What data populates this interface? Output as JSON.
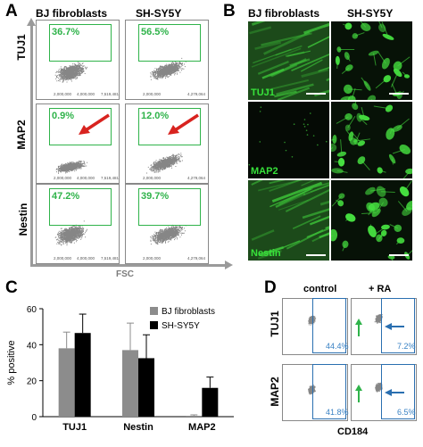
{
  "panels": {
    "A": {
      "letter": "A",
      "columns": [
        "BJ fibroblasts",
        "SH-SY5Y"
      ],
      "rows": [
        "TUJ1",
        "MAP2",
        "Nestin"
      ],
      "percentages": [
        [
          "36.7%",
          "56.5%"
        ],
        [
          "0.9%",
          "12.0%"
        ],
        [
          "47.2%",
          "39.7%"
        ]
      ],
      "x_axis_label": "FSC",
      "ticks": {
        "left": [
          "2,000,000",
          "4,000,000",
          "7,519,481"
        ],
        "right": [
          "2,000,000",
          "4,279,064"
        ]
      }
    },
    "B": {
      "letter": "B",
      "columns": [
        "BJ fibroblasts",
        "SH-SY5Y"
      ],
      "rows": [
        "TUJ1",
        "MAP2",
        "Nestin"
      ]
    },
    "C": {
      "letter": "C"
    },
    "D": {
      "letter": "D",
      "columns": [
        "control",
        "+ RA"
      ],
      "rows": [
        "TUJ1",
        "MAP2"
      ],
      "percentages": [
        [
          "44.4%",
          "7.2%"
        ],
        [
          "41.8%",
          "6.5%"
        ]
      ],
      "x_axis_label": "CD184"
    }
  },
  "chart_data": {
    "type": "bar",
    "categories": [
      "TUJ1",
      "Nestin",
      "MAP2"
    ],
    "series": [
      {
        "name": "BJ fibroblasts",
        "color": "#8c8c8c",
        "values": [
          38,
          37,
          0.5
        ],
        "errors": [
          9,
          15,
          0.5
        ]
      },
      {
        "name": "SH-SY5Y",
        "color": "#000000",
        "values": [
          46.5,
          32.5,
          16
        ],
        "errors": [
          10.5,
          13,
          6
        ]
      }
    ],
    "ylabel": "% positive",
    "ylim": [
      0,
      60
    ],
    "yticks": [
      0,
      20,
      40,
      60
    ],
    "legend_position": "top-right",
    "grid": false
  }
}
